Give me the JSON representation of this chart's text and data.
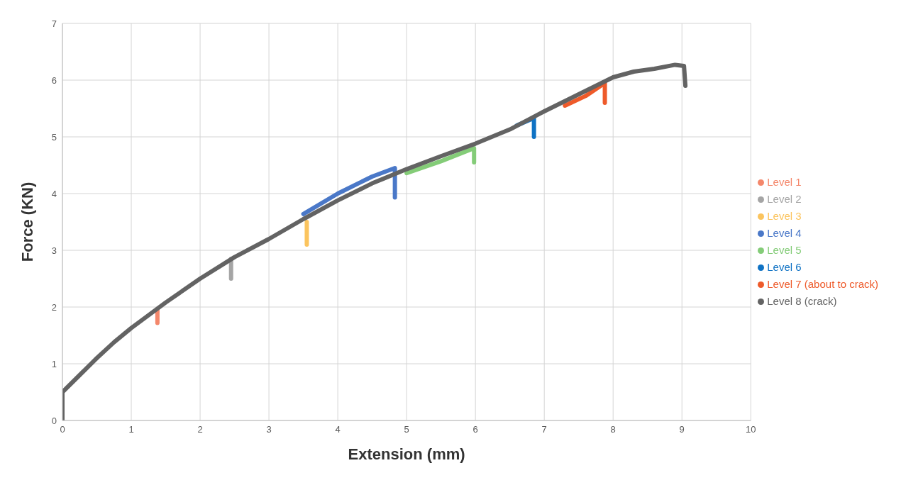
{
  "chart_data": {
    "type": "line",
    "xlabel": "Extension (mm)",
    "ylabel": "Force (KN)",
    "xlim": [
      0,
      10
    ],
    "xticks": [
      0,
      1,
      2,
      3,
      4,
      5,
      6,
      7,
      8,
      9,
      10
    ],
    "ylim": [
      0,
      7
    ],
    "yticks": [
      0,
      1,
      2,
      3,
      4,
      5,
      6,
      7
    ],
    "grid": true,
    "legend": "right",
    "marker": "none",
    "line_style": "solid",
    "series": [
      {
        "name": "Level 1",
        "color": "#f4876b",
        "x": [
          1.38,
          1.38
        ],
        "values": [
          1.95,
          1.72
        ]
      },
      {
        "name": "Level 2",
        "color": "#a5a5a5",
        "x": [
          2.45,
          2.45
        ],
        "values": [
          2.85,
          2.5
        ]
      },
      {
        "name": "Level 3",
        "color": "#fbc45e",
        "x": [
          3.55,
          3.55
        ],
        "values": [
          3.5,
          3.1
        ]
      },
      {
        "name": "Level 4",
        "color": "#4a78c8",
        "x": [
          3.5,
          4,
          4.5,
          4.83,
          4.83
        ],
        "values": [
          3.64,
          4.0,
          4.3,
          4.45,
          3.93
        ]
      },
      {
        "name": "Level 5",
        "color": "#84cc78",
        "x": [
          5,
          5.5,
          5.98,
          5.98
        ],
        "values": [
          4.36,
          4.57,
          4.8,
          4.55
        ]
      },
      {
        "name": "Level 6",
        "color": "#0f72c4",
        "x": [
          6.6,
          6.85,
          6.85
        ],
        "values": [
          5.2,
          5.33,
          5.0
        ]
      },
      {
        "name": "Level 7 (about to crack)",
        "color": "#ee5a2a",
        "x": [
          7.3,
          7.6,
          7.88,
          7.88
        ],
        "values": [
          5.55,
          5.72,
          5.95,
          5.6
        ]
      },
      {
        "name": "Level 8 (crack)",
        "color": "#636363",
        "x": [
          0,
          0,
          0.25,
          0.5,
          0.75,
          1,
          1.5,
          2,
          2.5,
          3,
          3.5,
          4,
          4.5,
          5,
          5.5,
          6,
          6.5,
          7,
          7.5,
          8,
          8.3,
          8.6,
          8.9,
          9.03,
          9.05
        ],
        "values": [
          0,
          0.5,
          0.8,
          1.1,
          1.38,
          1.63,
          2.08,
          2.5,
          2.88,
          3.2,
          3.55,
          3.88,
          4.18,
          4.43,
          4.66,
          4.88,
          5.13,
          5.45,
          5.75,
          6.05,
          6.15,
          6.2,
          6.27,
          6.25,
          5.9
        ]
      }
    ]
  }
}
